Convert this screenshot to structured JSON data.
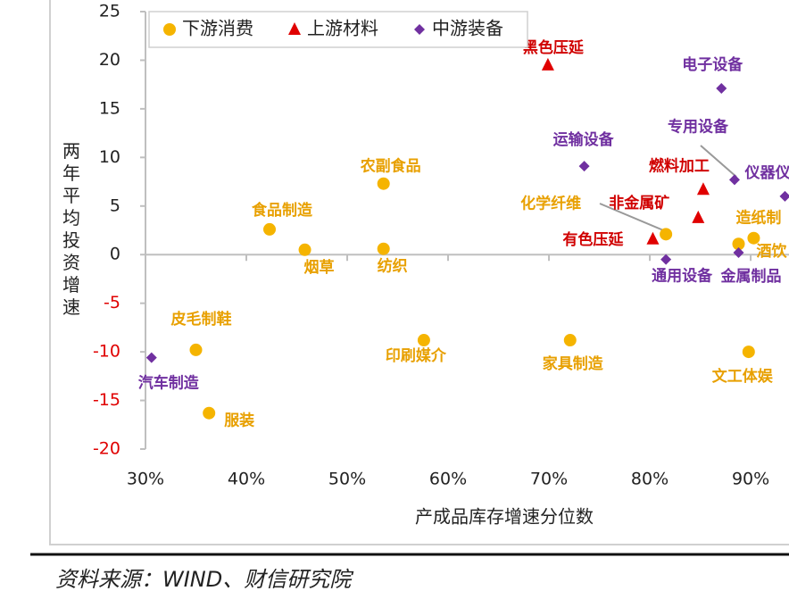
{
  "chart_data": {
    "type": "scatter",
    "xlabel": "产成品库存增速分位数",
    "ylabel": "两年平均投资增速",
    "source": "资料来源：WIND、财信研究院",
    "xlim": [
      30,
      93.8
    ],
    "ylim": [
      -20,
      25
    ],
    "xticks": [
      {
        "value": 30,
        "label": "30%"
      },
      {
        "value": 40,
        "label": "40%"
      },
      {
        "value": 50,
        "label": "50%"
      },
      {
        "value": 60,
        "label": "60%"
      },
      {
        "value": 70,
        "label": "70%"
      },
      {
        "value": 80,
        "label": "80%"
      },
      {
        "value": 90,
        "label": "90%"
      }
    ],
    "yticks": [
      25,
      20,
      15,
      10,
      5,
      0,
      -5,
      -10,
      -15,
      -20
    ],
    "negative_tick_color": "#e00000",
    "legend": "top-left",
    "series": [
      {
        "name": "下游消费",
        "marker": "circle",
        "color": "#f5b400",
        "label_color": "#e8a000",
        "labels": [
          "食品制造",
          "烟草",
          "农副食品",
          "纺织",
          "皮毛制鞋",
          "服装",
          "印刷媒介",
          "家具制造",
          "化学纤维",
          "造纸制",
          "酒饮",
          "文工体娱"
        ],
        "x": [
          42.3,
          45.8,
          53.6,
          53.6,
          35.0,
          36.3,
          57.6,
          72.1,
          81.6,
          90.3,
          88.8,
          89.8
        ],
        "values": [
          2.6,
          0.5,
          7.3,
          0.6,
          -9.8,
          -16.3,
          -8.8,
          -8.8,
          2.1,
          1.7,
          1.1,
          -10.0
        ]
      },
      {
        "name": "上游材料",
        "marker": "triangle",
        "color": "#e00000",
        "label_color": "#d00000",
        "labels": [
          "黑色压延",
          "燃料加工",
          "非金属矿",
          "有色压延"
        ],
        "x": [
          69.9,
          85.3,
          84.8,
          80.3
        ],
        "values": [
          19.5,
          6.7,
          3.8,
          1.6
        ]
      },
      {
        "name": "中游装备",
        "marker": "diamond",
        "color": "#7030a0",
        "label_color": "#7030a0",
        "labels": [
          "电子设备",
          "运输设备",
          "专用设备",
          "仪器仪",
          "通用设备",
          "金属制品",
          "汽车制造"
        ],
        "x": [
          87.1,
          73.5,
          88.4,
          93.4,
          81.6,
          88.8,
          30.6
        ],
        "values": [
          17.1,
          9.1,
          7.7,
          6.0,
          -0.5,
          0.2,
          -10.6
        ]
      }
    ]
  }
}
